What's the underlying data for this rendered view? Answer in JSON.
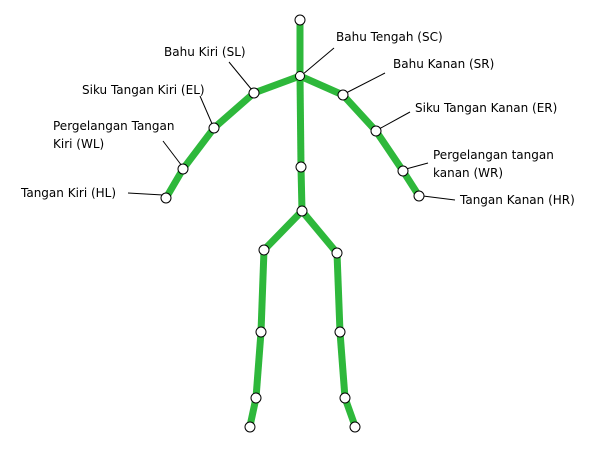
{
  "colors": {
    "bone": "#2eb83b",
    "joint_fill": "#ffffff",
    "joint_stroke": "#000000",
    "text": "#000000"
  },
  "labels": {
    "sc": "Bahu Tengah (SC)",
    "sl": "Bahu Kiri (SL)",
    "sr": "Bahu Kanan (SR)",
    "el": "Siku Tangan Kiri (EL)",
    "er": "Siku Tangan Kanan (ER)",
    "wl_line1": "Pergelangan Tangan",
    "wl_line2": "Kiri (WL)",
    "wr_line1": "Pergelangan tangan",
    "wr_line2": "kanan (WR)",
    "hl": "Tangan Kiri (HL)",
    "hr": "Tangan Kanan (HR)"
  }
}
